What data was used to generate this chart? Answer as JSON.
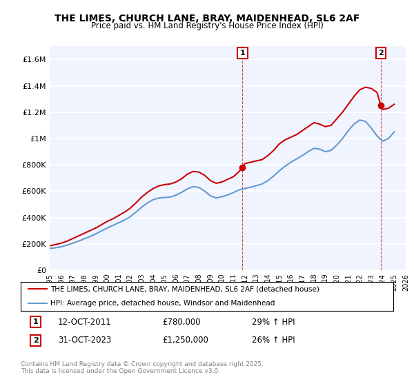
{
  "title": "THE LIMES, CHURCH LANE, BRAY, MAIDENHEAD, SL6 2AF",
  "subtitle": "Price paid vs. HM Land Registry's House Price Index (HPI)",
  "title_fontsize": 11,
  "subtitle_fontsize": 9,
  "background_color": "#f0f4ff",
  "plot_bg": "#f0f4ff",
  "red_color": "#cc0000",
  "blue_color": "#6699cc",
  "vline_color": "#cc0000",
  "ylim": [
    0,
    1700000
  ],
  "xlim_start": 1995,
  "xlim_end": 2026,
  "yticks": [
    0,
    200000,
    400000,
    600000,
    800000,
    1000000,
    1200000,
    1400000,
    1600000
  ],
  "ytick_labels": [
    "£0",
    "£200K",
    "£400K",
    "£600K",
    "£800K",
    "£1M",
    "£1.2M",
    "£1.4M",
    "£1.6M"
  ],
  "xticks": [
    1995,
    1996,
    1997,
    1998,
    1999,
    2000,
    2001,
    2002,
    2003,
    2004,
    2005,
    2006,
    2007,
    2008,
    2009,
    2010,
    2011,
    2012,
    2013,
    2014,
    2015,
    2016,
    2017,
    2018,
    2019,
    2020,
    2021,
    2022,
    2023,
    2024,
    2025,
    2026
  ],
  "transaction1_x": 2011.79,
  "transaction1_y": 780000,
  "transaction1_label": "1",
  "transaction2_x": 2023.83,
  "transaction2_y": 1250000,
  "transaction2_label": "2",
  "legend_line1": "THE LIMES, CHURCH LANE, BRAY, MAIDENHEAD, SL6 2AF (detached house)",
  "legend_line2": "HPI: Average price, detached house, Windsor and Maidenhead",
  "note1_label": "1",
  "note1_date": "12-OCT-2011",
  "note1_price": "£780,000",
  "note1_hpi": "29% ↑ HPI",
  "note2_label": "2",
  "note2_date": "31-OCT-2023",
  "note2_price": "£1,250,000",
  "note2_hpi": "26% ↑ HPI",
  "footnote": "Contains HM Land Registry data © Crown copyright and database right 2025.\nThis data is licensed under the Open Government Licence v3.0.",
  "red_x": [
    1995.0,
    1995.5,
    1996.0,
    1996.5,
    1997.0,
    1997.5,
    1998.0,
    1998.5,
    1999.0,
    1999.5,
    2000.0,
    2000.5,
    2001.0,
    2001.5,
    2002.0,
    2002.5,
    2003.0,
    2003.5,
    2004.0,
    2004.5,
    2005.0,
    2005.5,
    2006.0,
    2006.5,
    2007.0,
    2007.5,
    2008.0,
    2008.5,
    2009.0,
    2009.5,
    2010.0,
    2010.5,
    2011.0,
    2011.5,
    2011.79,
    2012.0,
    2012.5,
    2013.0,
    2013.5,
    2014.0,
    2014.5,
    2015.0,
    2015.5,
    2016.0,
    2016.5,
    2017.0,
    2017.5,
    2018.0,
    2018.5,
    2019.0,
    2019.5,
    2020.0,
    2020.5,
    2021.0,
    2021.5,
    2022.0,
    2022.5,
    2023.0,
    2023.5,
    2023.83,
    2024.0,
    2024.5,
    2025.0
  ],
  "red_y": [
    185000,
    195000,
    205000,
    220000,
    240000,
    260000,
    280000,
    300000,
    320000,
    345000,
    370000,
    390000,
    415000,
    440000,
    470000,
    510000,
    555000,
    590000,
    620000,
    640000,
    650000,
    655000,
    670000,
    695000,
    730000,
    750000,
    745000,
    720000,
    680000,
    660000,
    670000,
    690000,
    710000,
    750000,
    780000,
    810000,
    820000,
    830000,
    840000,
    870000,
    910000,
    960000,
    990000,
    1010000,
    1030000,
    1060000,
    1090000,
    1120000,
    1110000,
    1090000,
    1100000,
    1150000,
    1200000,
    1260000,
    1320000,
    1370000,
    1390000,
    1380000,
    1350000,
    1250000,
    1220000,
    1230000,
    1260000
  ],
  "blue_x": [
    1995.0,
    1995.5,
    1996.0,
    1996.5,
    1997.0,
    1997.5,
    1998.0,
    1998.5,
    1999.0,
    1999.5,
    2000.0,
    2000.5,
    2001.0,
    2001.5,
    2002.0,
    2002.5,
    2003.0,
    2003.5,
    2004.0,
    2004.5,
    2005.0,
    2005.5,
    2006.0,
    2006.5,
    2007.0,
    2007.5,
    2008.0,
    2008.5,
    2009.0,
    2009.5,
    2010.0,
    2010.5,
    2011.0,
    2011.5,
    2012.0,
    2012.5,
    2013.0,
    2013.5,
    2014.0,
    2014.5,
    2015.0,
    2015.5,
    2016.0,
    2016.5,
    2017.0,
    2017.5,
    2018.0,
    2018.5,
    2019.0,
    2019.5,
    2020.0,
    2020.5,
    2021.0,
    2021.5,
    2022.0,
    2022.5,
    2023.0,
    2023.5,
    2024.0,
    2024.5,
    2025.0
  ],
  "blue_y": [
    165000,
    170000,
    178000,
    190000,
    205000,
    220000,
    238000,
    255000,
    275000,
    298000,
    320000,
    340000,
    360000,
    380000,
    405000,
    440000,
    478000,
    510000,
    535000,
    548000,
    552000,
    555000,
    570000,
    592000,
    618000,
    635000,
    628000,
    600000,
    565000,
    548000,
    558000,
    572000,
    590000,
    610000,
    620000,
    630000,
    642000,
    655000,
    680000,
    715000,
    755000,
    790000,
    820000,
    845000,
    870000,
    900000,
    925000,
    920000,
    900000,
    910000,
    950000,
    1000000,
    1060000,
    1110000,
    1140000,
    1130000,
    1080000,
    1020000,
    980000,
    1000000,
    1050000
  ]
}
